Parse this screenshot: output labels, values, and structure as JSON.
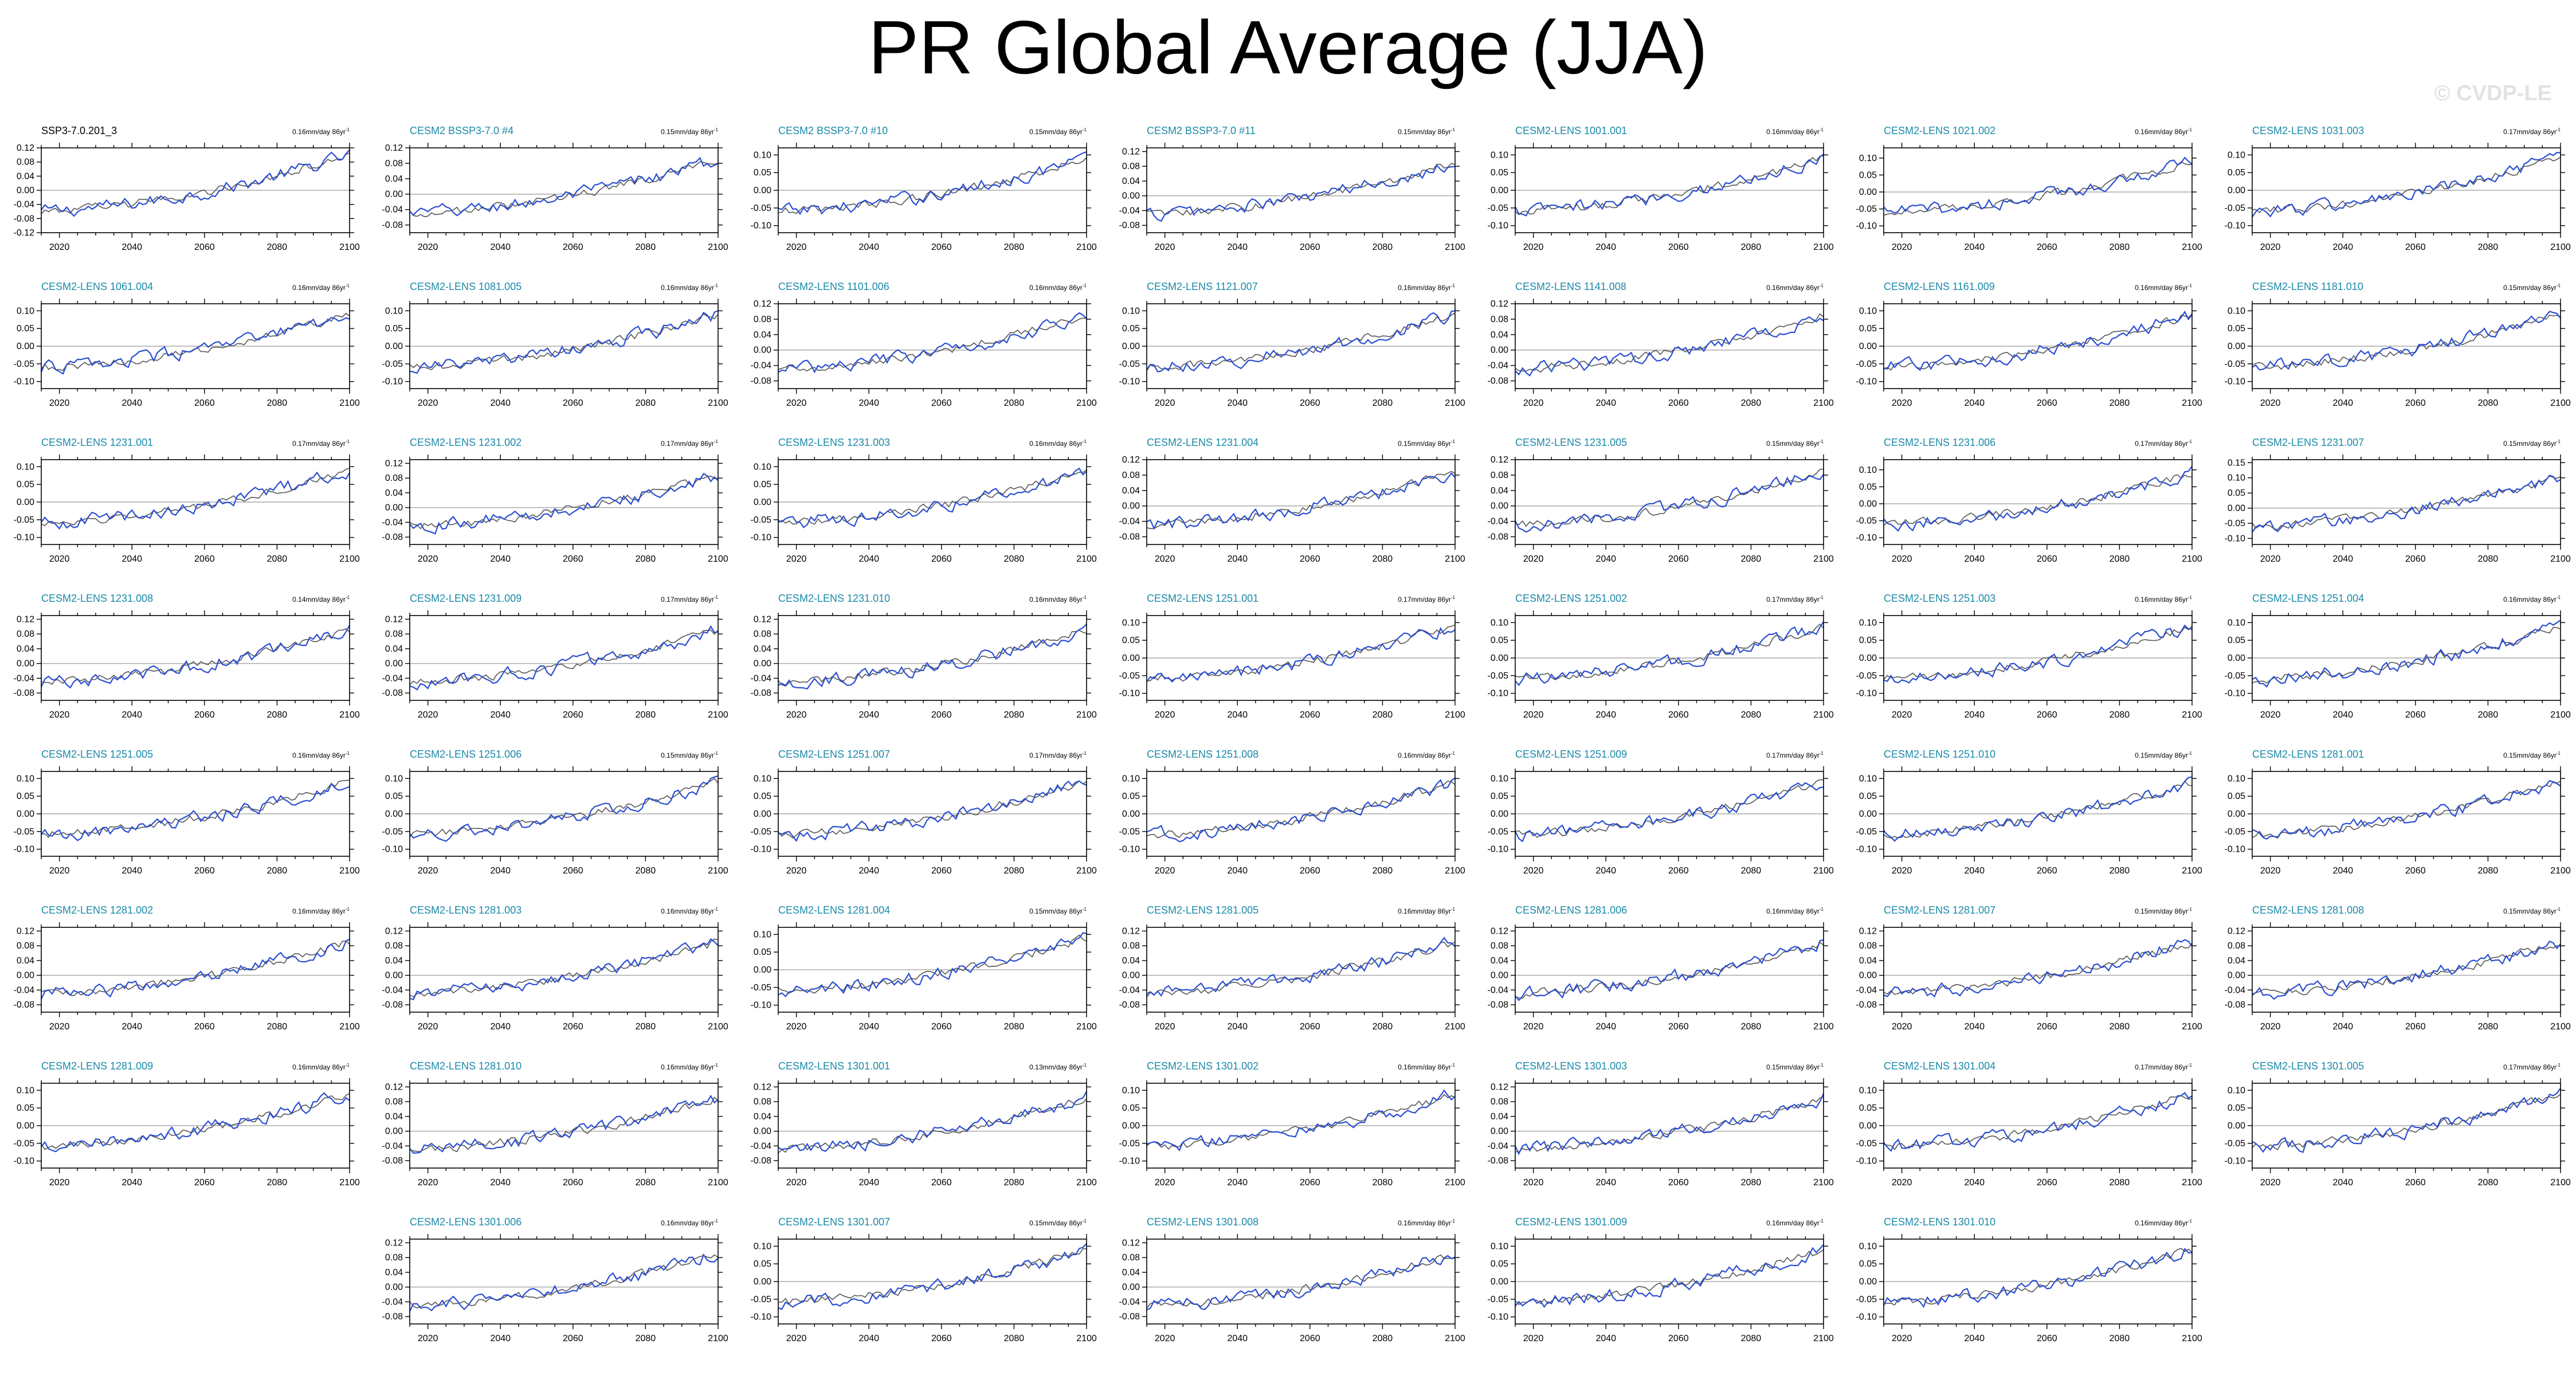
{
  "title": "PR Global Average (JJA)",
  "watermark": "© CVDP-LE",
  "colors": {
    "model_line": "#2b4fd1",
    "reference_line": "#555555",
    "panel_title_teal": "#1a8aa8",
    "panel_title_black": "#000000",
    "zero_line": "#aaaaaa"
  },
  "chart_data": {
    "type": "line",
    "layout": "small-multiples",
    "x_range": [
      2015,
      2100
    ],
    "xticks": [
      2020,
      2040,
      2060,
      2080,
      2100
    ],
    "trend_unit": "mm/day 86yr",
    "panels": [
      {
        "name": "SSP3-7.0.201_3",
        "trend": "0.16",
        "ylim": [
          -0.12,
          0.12
        ],
        "yticks": [
          -0.12,
          -0.08,
          -0.04,
          0.0,
          0.04,
          0.08,
          0.12
        ],
        "start": -0.06,
        "end": 0.1
      },
      {
        "name": "CESM2 BSSP3-7.0 #4",
        "trend": "0.15",
        "ylim": [
          -0.1,
          0.12
        ],
        "yticks": [
          -0.08,
          -0.04,
          0.0,
          0.04,
          0.08,
          0.12
        ],
        "start": -0.05,
        "end": 0.09
      },
      {
        "name": "CESM2 BSSP3-7.0 #10",
        "trend": "0.15",
        "ylim": [
          -0.12,
          0.12
        ],
        "yticks": [
          -0.1,
          -0.05,
          0.0,
          0.05,
          0.1
        ],
        "start": -0.06,
        "end": 0.09
      },
      {
        "name": "CESM2 BSSP3-7.0 #11",
        "trend": "0.15",
        "ylim": [
          -0.1,
          0.13
        ],
        "yticks": [
          -0.08,
          -0.04,
          0.0,
          0.04,
          0.08,
          0.12
        ],
        "start": -0.05,
        "end": 0.09
      },
      {
        "name": "CESM2-LENS 1001.001",
        "trend": "0.16",
        "ylim": [
          -0.12,
          0.12
        ],
        "yticks": [
          -0.1,
          -0.05,
          0.0,
          0.05,
          0.1
        ],
        "start": -0.06,
        "end": 0.09
      },
      {
        "name": "CESM2-LENS 1021.002",
        "trend": "0.16",
        "ylim": [
          -0.12,
          0.13
        ],
        "yticks": [
          -0.1,
          -0.05,
          0.0,
          0.05,
          0.1
        ],
        "start": -0.06,
        "end": 0.09
      },
      {
        "name": "CESM2-LENS 1031.003",
        "trend": "0.17",
        "ylim": [
          -0.12,
          0.12
        ],
        "yticks": [
          -0.1,
          -0.05,
          0.0,
          0.05,
          0.1
        ],
        "start": -0.06,
        "end": 0.09
      },
      {
        "name": "CESM2-LENS 1061.004",
        "trend": "0.16",
        "ylim": [
          -0.12,
          0.12
        ],
        "yticks": [
          -0.1,
          -0.05,
          0.0,
          0.05,
          0.1
        ],
        "start": -0.06,
        "end": 0.09
      },
      {
        "name": "CESM2-LENS 1081.005",
        "trend": "0.16",
        "ylim": [
          -0.12,
          0.12
        ],
        "yticks": [
          -0.1,
          -0.05,
          0.0,
          0.05,
          0.1
        ],
        "start": -0.06,
        "end": 0.09
      },
      {
        "name": "CESM2-LENS 1101.006",
        "trend": "0.16",
        "ylim": [
          -0.1,
          0.12
        ],
        "yticks": [
          -0.08,
          -0.04,
          0.0,
          0.04,
          0.08,
          0.12
        ],
        "start": -0.05,
        "end": 0.09
      },
      {
        "name": "CESM2-LENS 1121.007",
        "trend": "0.16",
        "ylim": [
          -0.12,
          0.12
        ],
        "yticks": [
          -0.1,
          -0.05,
          0.0,
          0.05,
          0.1
        ],
        "start": -0.06,
        "end": 0.09
      },
      {
        "name": "CESM2-LENS 1141.008",
        "trend": "0.16",
        "ylim": [
          -0.1,
          0.12
        ],
        "yticks": [
          -0.08,
          -0.04,
          0.0,
          0.04,
          0.08,
          0.12
        ],
        "start": -0.05,
        "end": 0.09
      },
      {
        "name": "CESM2-LENS 1161.009",
        "trend": "0.16",
        "ylim": [
          -0.12,
          0.12
        ],
        "yticks": [
          -0.1,
          -0.05,
          0.0,
          0.05,
          0.1
        ],
        "start": -0.06,
        "end": 0.09
      },
      {
        "name": "CESM2-LENS 1181.010",
        "trend": "0.15",
        "ylim": [
          -0.12,
          0.12
        ],
        "yticks": [
          -0.1,
          -0.05,
          0.0,
          0.05,
          0.1
        ],
        "start": -0.06,
        "end": 0.09
      },
      {
        "name": "CESM2-LENS 1231.001",
        "trend": "0.17",
        "ylim": [
          -0.12,
          0.12
        ],
        "yticks": [
          -0.1,
          -0.05,
          0.0,
          0.05,
          0.1
        ],
        "start": -0.06,
        "end": 0.09
      },
      {
        "name": "CESM2-LENS 1231.002",
        "trend": "0.17",
        "ylim": [
          -0.1,
          0.13
        ],
        "yticks": [
          -0.08,
          -0.04,
          0.0,
          0.04,
          0.08,
          0.12
        ],
        "start": -0.05,
        "end": 0.09
      },
      {
        "name": "CESM2-LENS 1231.003",
        "trend": "0.16",
        "ylim": [
          -0.12,
          0.12
        ],
        "yticks": [
          -0.1,
          -0.05,
          0.0,
          0.05,
          0.1
        ],
        "start": -0.06,
        "end": 0.09
      },
      {
        "name": "CESM2-LENS 1231.004",
        "trend": "0.15",
        "ylim": [
          -0.1,
          0.12
        ],
        "yticks": [
          -0.08,
          -0.04,
          0.0,
          0.04,
          0.08,
          0.12
        ],
        "start": -0.05,
        "end": 0.09
      },
      {
        "name": "CESM2-LENS 1231.005",
        "trend": "0.15",
        "ylim": [
          -0.1,
          0.12
        ],
        "yticks": [
          -0.08,
          -0.04,
          0.0,
          0.04,
          0.08,
          0.12
        ],
        "start": -0.05,
        "end": 0.09
      },
      {
        "name": "CESM2-LENS 1231.006",
        "trend": "0.17",
        "ylim": [
          -0.12,
          0.13
        ],
        "yticks": [
          -0.1,
          -0.05,
          0.0,
          0.05,
          0.1
        ],
        "start": -0.06,
        "end": 0.09
      },
      {
        "name": "CESM2-LENS 1231.007",
        "trend": "0.15",
        "ylim": [
          -0.12,
          0.16
        ],
        "yticks": [
          -0.1,
          -0.05,
          0.0,
          0.05,
          0.1,
          0.15
        ],
        "start": -0.06,
        "end": 0.1
      },
      {
        "name": "CESM2-LENS 1231.008",
        "trend": "0.14",
        "ylim": [
          -0.1,
          0.13
        ],
        "yticks": [
          -0.08,
          -0.04,
          0.0,
          0.04,
          0.08,
          0.12
        ],
        "start": -0.05,
        "end": 0.09
      },
      {
        "name": "CESM2-LENS 1231.009",
        "trend": "0.17",
        "ylim": [
          -0.1,
          0.13
        ],
        "yticks": [
          -0.08,
          -0.04,
          0.0,
          0.04,
          0.08,
          0.12
        ],
        "start": -0.05,
        "end": 0.09
      },
      {
        "name": "CESM2-LENS 1231.010",
        "trend": "0.16",
        "ylim": [
          -0.1,
          0.13
        ],
        "yticks": [
          -0.08,
          -0.04,
          0.0,
          0.04,
          0.08,
          0.12
        ],
        "start": -0.05,
        "end": 0.09
      },
      {
        "name": "CESM2-LENS 1251.001",
        "trend": "0.17",
        "ylim": [
          -0.12,
          0.12
        ],
        "yticks": [
          -0.1,
          -0.05,
          0.0,
          0.05,
          0.1
        ],
        "start": -0.06,
        "end": 0.09
      },
      {
        "name": "CESM2-LENS 1251.002",
        "trend": "0.17",
        "ylim": [
          -0.12,
          0.12
        ],
        "yticks": [
          -0.1,
          -0.05,
          0.0,
          0.05,
          0.1
        ],
        "start": -0.06,
        "end": 0.09
      },
      {
        "name": "CESM2-LENS 1251.003",
        "trend": "0.16",
        "ylim": [
          -0.12,
          0.12
        ],
        "yticks": [
          -0.1,
          -0.05,
          0.0,
          0.05,
          0.1
        ],
        "start": -0.06,
        "end": 0.09
      },
      {
        "name": "CESM2-LENS 1251.004",
        "trend": "0.16",
        "ylim": [
          -0.12,
          0.12
        ],
        "yticks": [
          -0.1,
          -0.05,
          0.0,
          0.05,
          0.1
        ],
        "start": -0.06,
        "end": 0.09
      },
      {
        "name": "CESM2-LENS 1251.005",
        "trend": "0.16",
        "ylim": [
          -0.12,
          0.12
        ],
        "yticks": [
          -0.1,
          -0.05,
          0.0,
          0.05,
          0.1
        ],
        "start": -0.06,
        "end": 0.09
      },
      {
        "name": "CESM2-LENS 1251.006",
        "trend": "0.15",
        "ylim": [
          -0.12,
          0.12
        ],
        "yticks": [
          -0.1,
          -0.05,
          0.0,
          0.05,
          0.1
        ],
        "start": -0.06,
        "end": 0.09
      },
      {
        "name": "CESM2-LENS 1251.007",
        "trend": "0.17",
        "ylim": [
          -0.12,
          0.12
        ],
        "yticks": [
          -0.1,
          -0.05,
          0.0,
          0.05,
          0.1
        ],
        "start": -0.06,
        "end": 0.09
      },
      {
        "name": "CESM2-LENS 1251.008",
        "trend": "0.16",
        "ylim": [
          -0.12,
          0.12
        ],
        "yticks": [
          -0.1,
          -0.05,
          0.0,
          0.05,
          0.1
        ],
        "start": -0.06,
        "end": 0.09
      },
      {
        "name": "CESM2-LENS 1251.009",
        "trend": "0.17",
        "ylim": [
          -0.12,
          0.12
        ],
        "yticks": [
          -0.1,
          -0.05,
          0.0,
          0.05,
          0.1
        ],
        "start": -0.06,
        "end": 0.09
      },
      {
        "name": "CESM2-LENS 1251.010",
        "trend": "0.15",
        "ylim": [
          -0.12,
          0.12
        ],
        "yticks": [
          -0.1,
          -0.05,
          0.0,
          0.05,
          0.1
        ],
        "start": -0.06,
        "end": 0.09
      },
      {
        "name": "CESM2-LENS 1281.001",
        "trend": "0.15",
        "ylim": [
          -0.12,
          0.12
        ],
        "yticks": [
          -0.1,
          -0.05,
          0.0,
          0.05,
          0.1
        ],
        "start": -0.06,
        "end": 0.09
      },
      {
        "name": "CESM2-LENS 1281.002",
        "trend": "0.16",
        "ylim": [
          -0.1,
          0.13
        ],
        "yticks": [
          -0.08,
          -0.04,
          0.0,
          0.04,
          0.08,
          0.12
        ],
        "start": -0.05,
        "end": 0.09
      },
      {
        "name": "CESM2-LENS 1281.003",
        "trend": "0.16",
        "ylim": [
          -0.1,
          0.13
        ],
        "yticks": [
          -0.08,
          -0.04,
          0.0,
          0.04,
          0.08,
          0.12
        ],
        "start": -0.05,
        "end": 0.09
      },
      {
        "name": "CESM2-LENS 1281.004",
        "trend": "0.15",
        "ylim": [
          -0.12,
          0.12
        ],
        "yticks": [
          -0.1,
          -0.05,
          0.0,
          0.05,
          0.1
        ],
        "start": -0.06,
        "end": 0.09
      },
      {
        "name": "CESM2-LENS 1281.005",
        "trend": "0.16",
        "ylim": [
          -0.1,
          0.13
        ],
        "yticks": [
          -0.08,
          -0.04,
          0.0,
          0.04,
          0.08,
          0.12
        ],
        "start": -0.05,
        "end": 0.09
      },
      {
        "name": "CESM2-LENS 1281.006",
        "trend": "0.16",
        "ylim": [
          -0.1,
          0.13
        ],
        "yticks": [
          -0.08,
          -0.04,
          0.0,
          0.04,
          0.08,
          0.12
        ],
        "start": -0.05,
        "end": 0.09
      },
      {
        "name": "CESM2-LENS 1281.007",
        "trend": "0.15",
        "ylim": [
          -0.1,
          0.13
        ],
        "yticks": [
          -0.08,
          -0.04,
          0.0,
          0.04,
          0.08,
          0.12
        ],
        "start": -0.05,
        "end": 0.09
      },
      {
        "name": "CESM2-LENS 1281.008",
        "trend": "0.15",
        "ylim": [
          -0.1,
          0.13
        ],
        "yticks": [
          -0.08,
          -0.04,
          0.0,
          0.04,
          0.08,
          0.12
        ],
        "start": -0.05,
        "end": 0.09
      },
      {
        "name": "CESM2-LENS 1281.009",
        "trend": "0.16",
        "ylim": [
          -0.12,
          0.12
        ],
        "yticks": [
          -0.1,
          -0.05,
          0.0,
          0.05,
          0.1
        ],
        "start": -0.06,
        "end": 0.09
      },
      {
        "name": "CESM2-LENS 1281.010",
        "trend": "0.16",
        "ylim": [
          -0.1,
          0.13
        ],
        "yticks": [
          -0.08,
          -0.04,
          0.0,
          0.04,
          0.08,
          0.12
        ],
        "start": -0.05,
        "end": 0.09
      },
      {
        "name": "CESM2-LENS 1301.001",
        "trend": "0.13",
        "ylim": [
          -0.1,
          0.13
        ],
        "yticks": [
          -0.08,
          -0.04,
          0.0,
          0.04,
          0.08,
          0.12
        ],
        "start": -0.05,
        "end": 0.09
      },
      {
        "name": "CESM2-LENS 1301.002",
        "trend": "0.16",
        "ylim": [
          -0.12,
          0.12
        ],
        "yticks": [
          -0.1,
          -0.05,
          0.0,
          0.05,
          0.1
        ],
        "start": -0.06,
        "end": 0.09
      },
      {
        "name": "CESM2-LENS 1301.003",
        "trend": "0.15",
        "ylim": [
          -0.1,
          0.13
        ],
        "yticks": [
          -0.08,
          -0.04,
          0.0,
          0.04,
          0.08,
          0.12
        ],
        "start": -0.05,
        "end": 0.09
      },
      {
        "name": "CESM2-LENS 1301.004",
        "trend": "0.17",
        "ylim": [
          -0.12,
          0.12
        ],
        "yticks": [
          -0.1,
          -0.05,
          0.0,
          0.05,
          0.1
        ],
        "start": -0.06,
        "end": 0.09
      },
      {
        "name": "CESM2-LENS 1301.005",
        "trend": "0.17",
        "ylim": [
          -0.12,
          0.12
        ],
        "yticks": [
          -0.1,
          -0.05,
          0.0,
          0.05,
          0.1
        ],
        "start": -0.06,
        "end": 0.09
      },
      {
        "name": "CESM2-LENS 1301.006",
        "trend": "0.16",
        "ylim": [
          -0.1,
          0.13
        ],
        "yticks": [
          -0.08,
          -0.04,
          0.0,
          0.04,
          0.08,
          0.12
        ],
        "start": -0.05,
        "end": 0.09
      },
      {
        "name": "CESM2-LENS 1301.007",
        "trend": "0.15",
        "ylim": [
          -0.12,
          0.12
        ],
        "yticks": [
          -0.1,
          -0.05,
          0.0,
          0.05,
          0.1
        ],
        "start": -0.06,
        "end": 0.09
      },
      {
        "name": "CESM2-LENS 1301.008",
        "trend": "0.16",
        "ylim": [
          -0.1,
          0.13
        ],
        "yticks": [
          -0.08,
          -0.04,
          0.0,
          0.04,
          0.08,
          0.12
        ],
        "start": -0.05,
        "end": 0.09
      },
      {
        "name": "CESM2-LENS 1301.009",
        "trend": "0.16",
        "ylim": [
          -0.12,
          0.12
        ],
        "yticks": [
          -0.1,
          -0.05,
          0.0,
          0.05,
          0.1
        ],
        "start": -0.06,
        "end": 0.09
      },
      {
        "name": "CESM2-LENS 1301.010",
        "trend": "0.16",
        "ylim": [
          -0.12,
          0.12
        ],
        "yticks": [
          -0.1,
          -0.05,
          0.0,
          0.05,
          0.1
        ],
        "start": -0.06,
        "end": 0.09
      }
    ]
  }
}
